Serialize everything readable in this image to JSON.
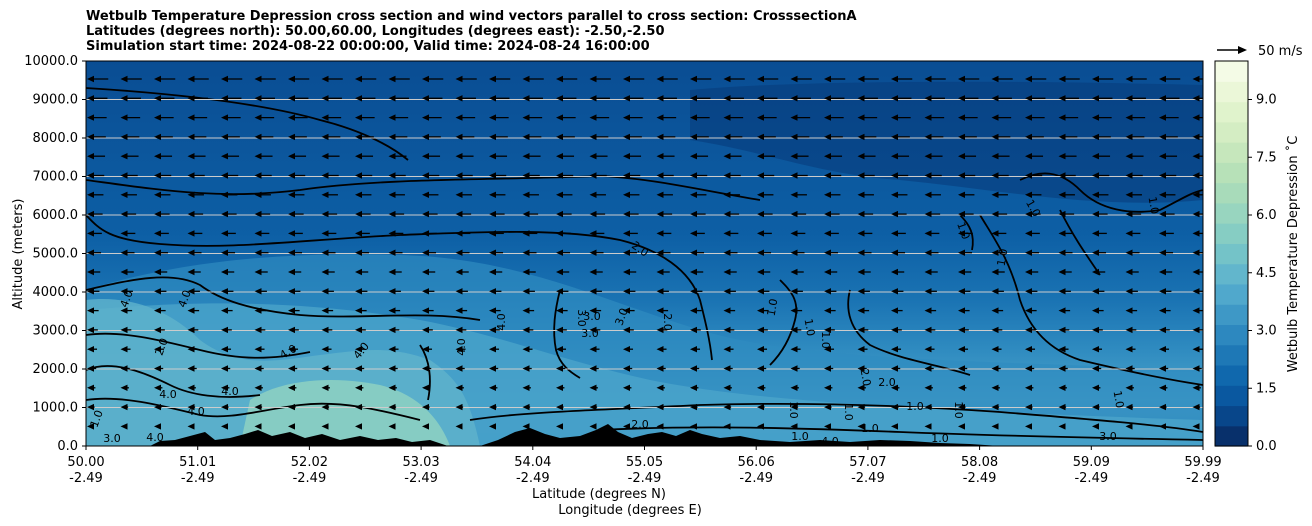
{
  "title_lines": [
    "Wetbulb Temperature Depression cross section and wind vectors parallel to cross section: CrosssectionA",
    "Latitudes (degrees north): 50.00,60.00, Longitudes (degrees east): -2.50,-2.50",
    "Simulation start time: 2024-08-22 00:00:00, Valid time: 2024-08-24 16:00:00"
  ],
  "chart_data": {
    "type": "heatmap",
    "ylabel": "Altitude (meters)",
    "xlabel_lines": [
      "Latitude (degrees N)",
      "Longitude (degrees E)"
    ],
    "ylim": [
      0,
      10000
    ],
    "y_ticks": [
      "0.0",
      "1000.0",
      "2000.0",
      "3000.0",
      "4000.0",
      "5000.0",
      "6000.0",
      "7000.0",
      "8000.0",
      "9000.0",
      "10000.0"
    ],
    "x_ticks": [
      {
        "lat": "50.00",
        "lon": "-2.49"
      },
      {
        "lat": "51.01",
        "lon": "-2.49"
      },
      {
        "lat": "52.02",
        "lon": "-2.49"
      },
      {
        "lat": "53.03",
        "lon": "-2.49"
      },
      {
        "lat": "54.04",
        "lon": "-2.49"
      },
      {
        "lat": "55.05",
        "lon": "-2.49"
      },
      {
        "lat": "56.06",
        "lon": "-2.49"
      },
      {
        "lat": "57.07",
        "lon": "-2.49"
      },
      {
        "lat": "58.08",
        "lon": "-2.49"
      },
      {
        "lat": "59.09",
        "lon": "-2.49"
      },
      {
        "lat": "59.99",
        "lon": "-2.49"
      }
    ],
    "grid": "horizontal",
    "colorbar": {
      "label": "Wetbulb Temperature Depression ˚C",
      "range": [
        0,
        10
      ],
      "ticks": [
        "0.0",
        "1.5",
        "3.0",
        "4.5",
        "6.0",
        "7.5",
        "9.0"
      ],
      "colors": [
        "#08306b",
        "#08468a",
        "#0a58a0",
        "#1068ad",
        "#1e78b6",
        "#2d88bf",
        "#3e98c6",
        "#50a8cc",
        "#62b6cc",
        "#74c3c8",
        "#86cdc3",
        "#98d5bf",
        "#a8dbba",
        "#b7e1b8",
        "#c6e7bc",
        "#d4edc3",
        "#e0f3cc",
        "#ebf7d8",
        "#f4fbe6"
      ]
    },
    "wind_reference": {
      "label": "50 m/s",
      "speed": 50
    },
    "contour_labels": [
      "1.0",
      "2.0",
      "3.0",
      "4.0"
    ],
    "colors": {
      "terrain": "#000000",
      "contour": "#000000",
      "grid": "#cccccc"
    }
  }
}
